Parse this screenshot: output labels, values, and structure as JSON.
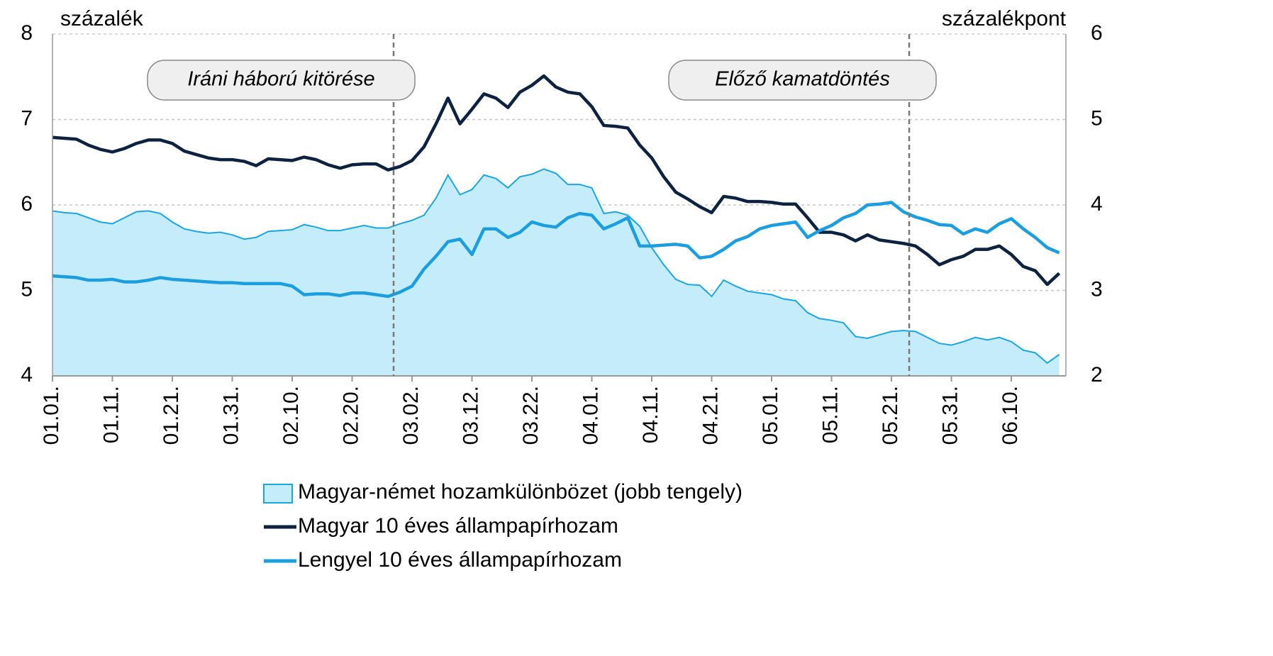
{
  "chart_data": {
    "type": "line",
    "y_label": "százalék",
    "y2_label": "százalékpont",
    "annotations": [
      "Iráni háború kitörése",
      "Előző kamatdöntés"
    ],
    "categories": [
      "01.01.",
      null,
      null,
      null,
      null,
      "01.11.",
      null,
      null,
      null,
      null,
      "01.21.",
      null,
      null,
      null,
      null,
      "01.31.",
      null,
      null,
      null,
      null,
      "02.10.",
      null,
      null,
      null,
      null,
      "02.20.",
      null,
      null,
      null,
      null,
      "03.02.",
      null,
      null,
      null,
      null,
      "03.12.",
      null,
      null,
      null,
      null,
      "03.22.",
      null,
      null,
      null,
      null,
      "04.01.",
      null,
      null,
      null,
      null,
      "04.11.",
      null,
      null,
      null,
      null,
      "04.21.",
      null,
      null,
      null,
      null,
      "05.01.",
      null,
      null,
      null,
      null,
      "05.11.",
      null,
      null,
      null,
      null,
      "05.21.",
      null,
      null,
      null,
      null,
      "05.31.",
      null,
      null,
      null,
      null,
      "06.10.",
      null,
      null,
      null,
      null
    ],
    "ylim": [
      4,
      8
    ],
    "yticks": [
      4,
      5,
      6,
      7,
      8
    ],
    "y2lim": [
      2,
      6
    ],
    "y2ticks": [
      2,
      3,
      4,
      5,
      6
    ],
    "grid": true,
    "series": [
      {
        "name": "Magyar-német hozamkülönbözet (jobb tengely)",
        "type": "area",
        "axis": "y2",
        "color": "#1aa6e0",
        "fill": "#c5ecfb",
        "values": [
          3.93,
          3.91,
          3.9,
          3.85,
          3.8,
          3.78,
          3.85,
          3.92,
          3.93,
          3.9,
          3.8,
          3.72,
          3.69,
          3.67,
          3.68,
          3.65,
          3.6,
          3.62,
          3.69,
          3.7,
          3.71,
          3.77,
          3.74,
          3.7,
          3.7,
          3.73,
          3.76,
          3.73,
          3.73,
          3.78,
          3.82,
          3.88,
          4.08,
          4.35,
          4.12,
          4.18,
          4.35,
          4.31,
          4.2,
          4.33,
          4.36,
          4.42,
          4.37,
          4.24,
          4.24,
          4.2,
          3.9,
          3.92,
          3.88,
          3.75,
          3.5,
          3.3,
          3.13,
          3.07,
          3.06,
          2.93,
          3.12,
          3.05,
          2.99,
          2.97,
          2.95,
          2.9,
          2.88,
          2.74,
          2.67,
          2.65,
          2.62,
          2.46,
          2.44,
          2.48,
          2.52,
          2.53,
          2.52,
          2.45,
          2.38,
          2.36,
          2.4,
          2.45,
          2.42,
          2.45,
          2.4,
          2.3,
          2.27,
          2.15,
          2.25
        ]
      },
      {
        "name": "Magyar 10 éves állampapírhozam",
        "color": "#0d2240",
        "values": [
          6.79,
          6.78,
          6.77,
          6.7,
          6.65,
          6.62,
          6.66,
          6.72,
          6.76,
          6.76,
          6.72,
          6.63,
          6.59,
          6.55,
          6.53,
          6.53,
          6.51,
          6.46,
          6.54,
          6.53,
          6.52,
          6.56,
          6.53,
          6.47,
          6.43,
          6.47,
          6.48,
          6.48,
          6.41,
          6.45,
          6.52,
          6.68,
          6.95,
          7.25,
          6.95,
          7.12,
          7.3,
          7.25,
          7.14,
          7.32,
          7.4,
          7.51,
          7.38,
          7.32,
          7.3,
          7.15,
          6.93,
          6.92,
          6.9,
          6.7,
          6.55,
          6.33,
          6.15,
          6.07,
          5.98,
          5.91,
          6.1,
          6.08,
          6.04,
          6.04,
          6.03,
          6.01,
          6.01,
          5.85,
          5.68,
          5.68,
          5.65,
          5.58,
          5.65,
          5.59,
          5.57,
          5.55,
          5.52,
          5.42,
          5.3,
          5.36,
          5.4,
          5.48,
          5.48,
          5.52,
          5.42,
          5.28,
          5.23,
          5.07,
          5.2
        ]
      },
      {
        "name": "Lengyel 10 éves állampapírhozam",
        "color": "#1a9ee0",
        "values": [
          5.17,
          5.16,
          5.15,
          5.12,
          5.12,
          5.13,
          5.1,
          5.1,
          5.12,
          5.15,
          5.13,
          5.12,
          5.11,
          5.1,
          5.09,
          5.09,
          5.08,
          5.08,
          5.08,
          5.08,
          5.05,
          4.95,
          4.96,
          4.96,
          4.94,
          4.97,
          4.97,
          4.95,
          4.93,
          4.98,
          5.05,
          5.25,
          5.4,
          5.57,
          5.6,
          5.42,
          5.72,
          5.72,
          5.62,
          5.68,
          5.8,
          5.76,
          5.74,
          5.85,
          5.9,
          5.88,
          5.72,
          5.78,
          5.85,
          5.52,
          5.52,
          5.53,
          5.54,
          5.52,
          5.38,
          5.4,
          5.48,
          5.58,
          5.63,
          5.72,
          5.76,
          5.78,
          5.8,
          5.62,
          5.7,
          5.76,
          5.85,
          5.9,
          6.0,
          6.01,
          6.03,
          5.92,
          5.86,
          5.82,
          5.77,
          5.76,
          5.66,
          5.72,
          5.68,
          5.78,
          5.84,
          5.72,
          5.62,
          5.5,
          5.44
        ]
      }
    ]
  }
}
